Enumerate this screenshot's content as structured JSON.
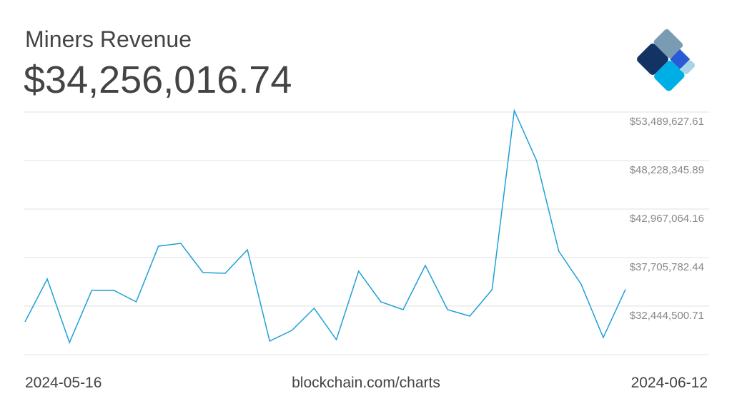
{
  "chart_data": {
    "type": "line",
    "title": "Miners Revenue",
    "subtitle": "$34,256,016.74",
    "source": "blockchain.com/charts",
    "categories": [
      "2024-05-16",
      null,
      null,
      null,
      null,
      null,
      null,
      null,
      null,
      null,
      null,
      null,
      null,
      null,
      null,
      null,
      null,
      null,
      null,
      null,
      null,
      null,
      null,
      null,
      null,
      null,
      null,
      "2024-06-12"
    ],
    "series": [
      {
        "name": "Miners Revenue",
        "color": "#1ea0d6",
        "values": [
          30742000,
          35385000,
          28499000,
          34147000,
          34147000,
          32909000,
          38944000,
          39253000,
          36081000,
          36004000,
          38557000,
          28653000,
          29814000,
          32212000,
          28808000,
          36236000,
          32909000,
          32058000,
          36855000,
          32058000,
          31361000,
          34224000,
          53644000,
          48228000,
          38402000,
          34843000,
          29040000,
          34256016.74
        ]
      }
    ],
    "ylim": [
      27183218.96,
      53489627.61
    ],
    "yticks": [
      {
        "value": 32444500.71,
        "label": "$32,444,500.71"
      },
      {
        "value": 37705782.44,
        "label": "$37,705,782.44"
      },
      {
        "value": 42967064.16,
        "label": "$42,967,064.16"
      },
      {
        "value": 48228345.89,
        "label": "$48,228,345.89"
      },
      {
        "value": 53489627.61,
        "label": "$53,489,627.61"
      }
    ],
    "grid": true
  }
}
